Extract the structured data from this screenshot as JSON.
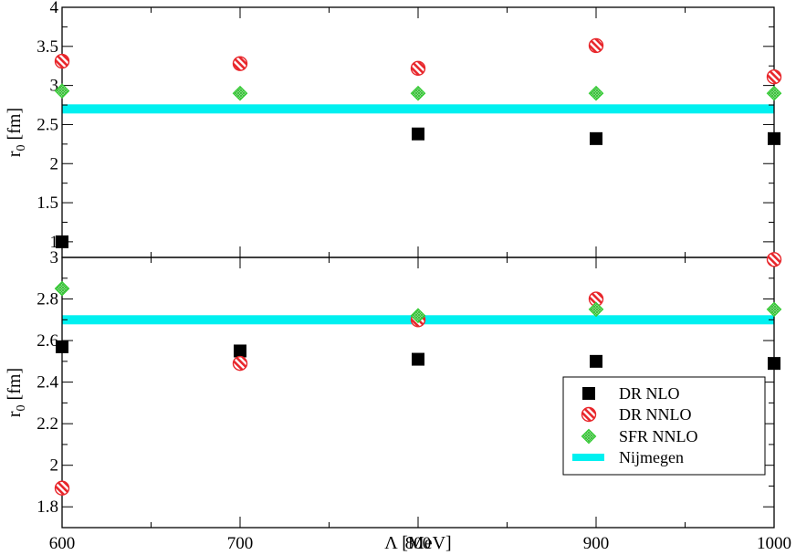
{
  "chart_data": [
    {
      "type": "scatter",
      "panel": "top",
      "xlabel": "",
      "ylabel": "r0 [fm]",
      "ylabel_main": "r",
      "ylabel_sub": "0",
      "ylabel_unit": "[fm]",
      "xlim": [
        600,
        1000
      ],
      "ylim": [
        0.8,
        4.0
      ],
      "xticks": [
        600,
        700,
        800,
        900,
        1000
      ],
      "yticks": [
        1,
        1.5,
        2,
        2.5,
        3,
        3.5,
        4
      ],
      "yticklabels": [
        "1",
        "1.5",
        "2",
        "2.5",
        "3",
        "3.5",
        "4"
      ],
      "nijmegen": 2.7,
      "series": [
        {
          "key": "dr_nlo",
          "x": [
            600,
            800,
            900,
            1000
          ],
          "y": [
            1.0,
            2.38,
            2.32,
            2.32
          ]
        },
        {
          "key": "dr_nnlo",
          "x": [
            600,
            700,
            800,
            900,
            1000
          ],
          "y": [
            3.31,
            3.28,
            3.22,
            3.51,
            3.11
          ]
        },
        {
          "key": "sfr_nnlo",
          "x": [
            600,
            700,
            800,
            900,
            1000
          ],
          "y": [
            2.93,
            2.9,
            2.9,
            2.9,
            2.9
          ]
        }
      ]
    },
    {
      "type": "scatter",
      "panel": "bottom",
      "xlabel": "Λ [MeV]",
      "ylabel": "r0 [fm]",
      "ylabel_main": "r",
      "ylabel_sub": "0",
      "ylabel_unit": "[fm]",
      "xlim": [
        600,
        1000
      ],
      "ylim": [
        1.7,
        3.0
      ],
      "xticks": [
        600,
        700,
        800,
        900,
        1000
      ],
      "xticklabels": [
        "600",
        "700",
        "800",
        "900",
        "1000"
      ],
      "yticks": [
        1.8,
        2.0,
        2.2,
        2.4,
        2.6,
        2.8,
        3.0
      ],
      "yticklabels": [
        "1.8",
        "2",
        "2.2",
        "2.4",
        "2.6",
        "2.8",
        "3"
      ],
      "nijmegen": 2.7,
      "series": [
        {
          "key": "dr_nlo",
          "x": [
            600,
            700,
            800,
            900,
            1000
          ],
          "y": [
            2.57,
            2.55,
            2.51,
            2.5,
            2.49
          ]
        },
        {
          "key": "dr_nnlo",
          "x": [
            600,
            700,
            800,
            900,
            1000
          ],
          "y": [
            1.89,
            2.49,
            2.7,
            2.8,
            2.99
          ]
        },
        {
          "key": "sfr_nnlo",
          "x": [
            600,
            700,
            800,
            900,
            1000
          ],
          "y": [
            2.85,
            null,
            2.72,
            2.75,
            2.75
          ]
        }
      ]
    }
  ],
  "legend": {
    "position": "bottom-right of lower panel",
    "entries": [
      {
        "key": "dr_nlo",
        "label": "DR NLO"
      },
      {
        "key": "dr_nnlo",
        "label": "DR NNLO"
      },
      {
        "key": "sfr_nnlo",
        "label": "SFR NNLO"
      },
      {
        "key": "nijmegen",
        "label": "Nijmegen"
      }
    ]
  },
  "colors": {
    "dr_nlo": "#000000",
    "dr_nnlo": "#e8262b",
    "sfr_nnlo": "#33cc33",
    "nijmegen": "#00f0f0"
  }
}
